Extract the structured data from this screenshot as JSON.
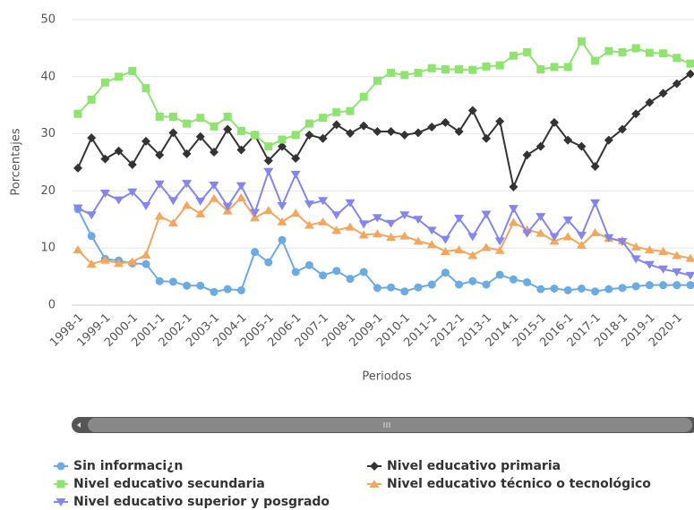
{
  "chart_data": {
    "type": "line",
    "x_label": "Periodos",
    "y_label": "Porcentajes",
    "categories": [
      "1998-1",
      null,
      "1999-1",
      null,
      "2000-1",
      null,
      "2001-1",
      null,
      "2002-1",
      null,
      "2003-1",
      null,
      "2004-1",
      null,
      "2005-1",
      null,
      "2006-1",
      null,
      "2007-1",
      null,
      "2008-1",
      null,
      "2009-1",
      null,
      "2010-1",
      null,
      "2011-1",
      null,
      "2012-1",
      null,
      "2013-1",
      null,
      "2014-1",
      null,
      "2015-1",
      null,
      "2016-1",
      null,
      "2017-1",
      null,
      "2018-1",
      null,
      "2019-1",
      null,
      "2020-1",
      null
    ],
    "ylim": [
      0,
      50
    ],
    "yticks": [
      0,
      10,
      20,
      30,
      40,
      50
    ],
    "series": [
      {
        "name": "Sin informaci¿n",
        "color": "#6aabe3",
        "marker": "circle",
        "values": [
          16.8,
          12.1,
          8.1,
          7.8,
          7.3,
          7.2,
          4.2,
          4.1,
          3.4,
          3.4,
          2.3,
          2.8,
          2.6,
          9.3,
          7.5,
          11.4,
          5.8,
          7,
          5.2,
          6,
          4.6,
          5.8,
          3,
          3.1,
          2.4,
          3.1,
          3.6,
          5.7,
          3.6,
          4.2,
          3.6,
          5.3,
          4.5,
          4,
          2.8,
          2.9,
          2.6,
          2.9,
          2.4,
          2.8,
          3,
          3.3,
          3.5,
          3.5,
          3.5,
          3.5
        ]
      },
      {
        "name": "Nivel educativo primaria",
        "color": "#333333",
        "marker": "diamond",
        "values": [
          24,
          29.3,
          25.6,
          27,
          24.6,
          28.7,
          26.3,
          30.2,
          26.5,
          29.5,
          26.8,
          30.8,
          27.2,
          29.8,
          25.3,
          27.8,
          25.7,
          29.8,
          29.2,
          31.6,
          30.1,
          31.4,
          30.4,
          30.4,
          29.8,
          30.2,
          31.2,
          32,
          30.4,
          34.1,
          29.2,
          32.2,
          20.7,
          26.3,
          27.8,
          32,
          28.9,
          27.8,
          24.3,
          28.9,
          30.8,
          33.5,
          35.5,
          37.1,
          38.8,
          40.5
        ]
      },
      {
        "name": "Nivel educativo secundaria",
        "color": "#8ee46f",
        "marker": "square",
        "values": [
          33.5,
          36,
          39,
          40,
          41,
          38,
          33,
          33,
          31.8,
          32.8,
          31.3,
          33,
          30.5,
          29.8,
          27.8,
          29,
          29.8,
          31.8,
          32.8,
          33.8,
          34,
          36.5,
          39.3,
          40.7,
          40.3,
          40.7,
          41.5,
          41.3,
          41.3,
          41.2,
          41.8,
          42,
          43.7,
          44.3,
          41.3,
          41.7,
          41.7,
          46.2,
          42.8,
          44.5,
          44.3,
          45,
          44.2,
          44.1,
          43.3,
          42.3
        ]
      },
      {
        "name": "Nivel educativo técnico o tecnológico",
        "color": "#f2a65e",
        "marker": "triangle",
        "values": [
          9.7,
          7.2,
          7.9,
          7.3,
          7.6,
          8.8,
          15.6,
          14.4,
          17.5,
          16,
          18.7,
          16.5,
          18.8,
          15.3,
          16.6,
          14.6,
          16.1,
          14,
          14.6,
          13.1,
          13.7,
          12.3,
          12.5,
          11.9,
          12.1,
          11.2,
          10.6,
          9.4,
          9.7,
          8.7,
          10.1,
          9.6,
          14.5,
          13.2,
          12.6,
          11.2,
          12,
          10.5,
          12.7,
          11.7,
          11.3,
          10.2,
          9.7,
          9.4,
          8.7,
          8.2
        ]
      },
      {
        "name": "Nivel educativo superior y posgrado",
        "color": "#8585ee",
        "marker": "triangle-down",
        "values": [
          17,
          15.8,
          19.6,
          18.4,
          19.8,
          17.4,
          21.2,
          18.3,
          21.3,
          18.2,
          21,
          17.3,
          20.9,
          16.2,
          23.4,
          17.4,
          22.9,
          17.7,
          18.3,
          15.8,
          17.9,
          14.2,
          15.3,
          14.3,
          15.8,
          15,
          13.1,
          11.5,
          15.2,
          12,
          15.9,
          11.2,
          16.9,
          12.6,
          15.5,
          12,
          14.9,
          12.2,
          17.9,
          11.8,
          11.1,
          8.1,
          7.1,
          6.3,
          5.8,
          5.2
        ]
      }
    ]
  }
}
